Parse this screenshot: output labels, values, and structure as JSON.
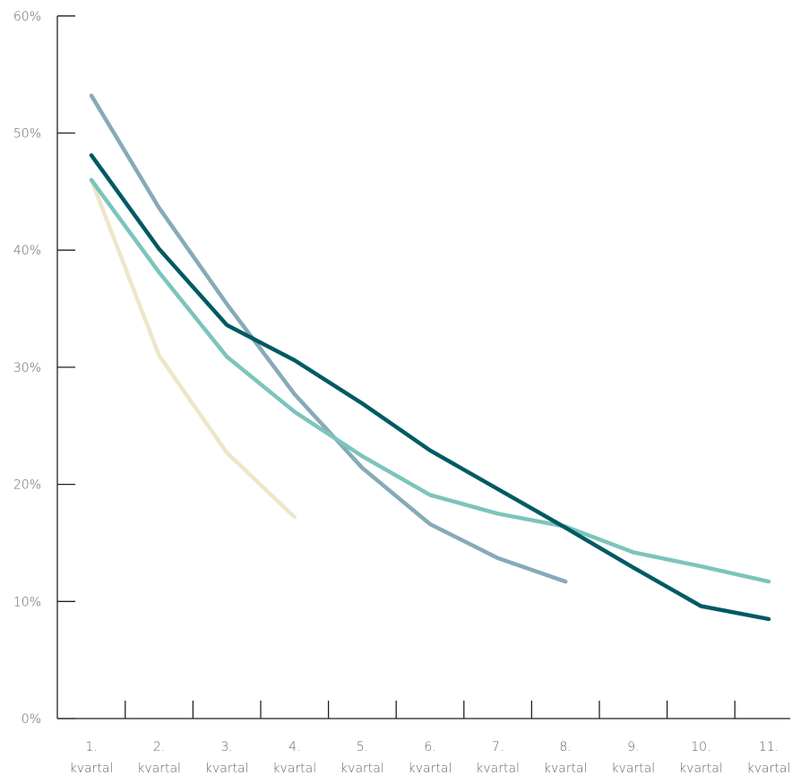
{
  "chart_data": {
    "type": "line",
    "categories": [
      [
        "1.",
        "kvartal"
      ],
      [
        "2.",
        "kvartal"
      ],
      [
        "3.",
        "kvartal"
      ],
      [
        "4.",
        "kvartal"
      ],
      [
        "5.",
        "kvartal"
      ],
      [
        "6.",
        "kvartal"
      ],
      [
        "7.",
        "kvartal"
      ],
      [
        "8.",
        "kvartal"
      ],
      [
        "9.",
        "kvartal"
      ],
      [
        "10.",
        "kvartal"
      ],
      [
        "11.",
        "kvartal"
      ]
    ],
    "y_ticks": [
      "0%",
      "10%",
      "20%",
      "30%",
      "40%",
      "50%",
      "60%"
    ],
    "ylim": [
      0,
      60
    ],
    "grid": false,
    "legend": "none",
    "series": [
      {
        "color": "#EDE6C8",
        "values": [
          46.0,
          31.0,
          22.7,
          17.2,
          null,
          null,
          null,
          null,
          null,
          null,
          null
        ]
      },
      {
        "color": "#86AAB8",
        "values": [
          53.2,
          43.6,
          35.4,
          27.7,
          21.4,
          16.6,
          13.7,
          11.7,
          null,
          null,
          null
        ]
      },
      {
        "color": "#7CC4BC",
        "values": [
          46.0,
          38.1,
          30.9,
          26.2,
          22.4,
          19.1,
          17.5,
          16.4,
          14.2,
          13.0,
          11.7
        ]
      },
      {
        "color": "#005A63",
        "values": [
          48.1,
          40.1,
          33.6,
          30.6,
          26.9,
          22.9,
          19.6,
          16.3,
          12.9,
          9.6,
          8.5
        ]
      }
    ]
  }
}
